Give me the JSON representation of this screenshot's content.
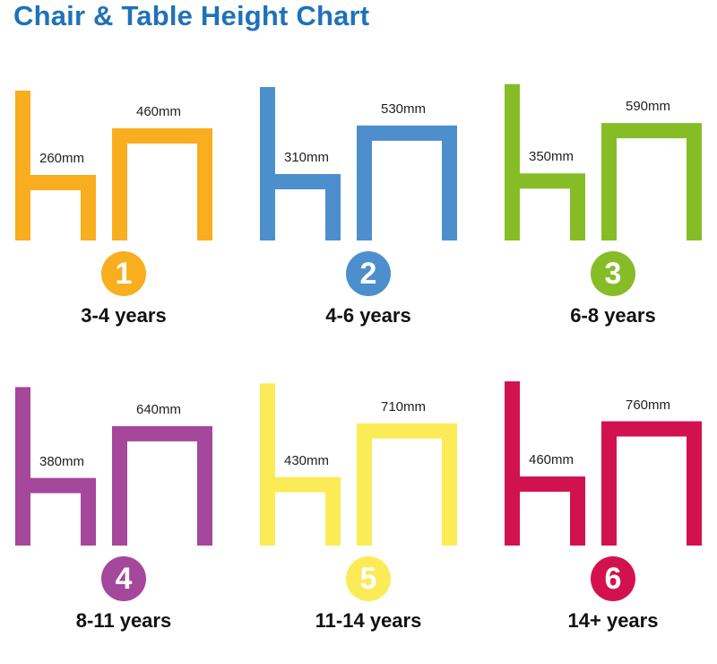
{
  "title": "Chair & Table Height Chart",
  "chart_data": {
    "type": "diagram",
    "sizes": [
      {
        "number": "1",
        "age": "3-4 years",
        "chair_height_mm": 260,
        "chair_label": "260mm",
        "table_height_mm": 460,
        "table_label": "460mm",
        "color": "#f9ae1f"
      },
      {
        "number": "2",
        "age": "4-6 years",
        "chair_height_mm": 310,
        "chair_label": "310mm",
        "table_height_mm": 530,
        "table_label": "530mm",
        "color": "#4d8fcd"
      },
      {
        "number": "3",
        "age": "6-8 years",
        "chair_height_mm": 350,
        "chair_label": "350mm",
        "table_height_mm": 590,
        "table_label": "590mm",
        "color": "#86bd27"
      },
      {
        "number": "4",
        "age": "8-11 years",
        "chair_height_mm": 380,
        "chair_label": "380mm",
        "table_height_mm": 640,
        "table_label": "640mm",
        "color": "#a5479a"
      },
      {
        "number": "5",
        "age": "11-14 years",
        "chair_height_mm": 430,
        "chair_label": "430mm",
        "table_height_mm": 710,
        "table_label": "710mm",
        "color": "#fbeb56"
      },
      {
        "number": "6",
        "age": "14+ years",
        "chair_height_mm": 460,
        "chair_label": "460mm",
        "table_height_mm": 760,
        "table_label": "760mm",
        "color": "#d2124f"
      }
    ]
  }
}
